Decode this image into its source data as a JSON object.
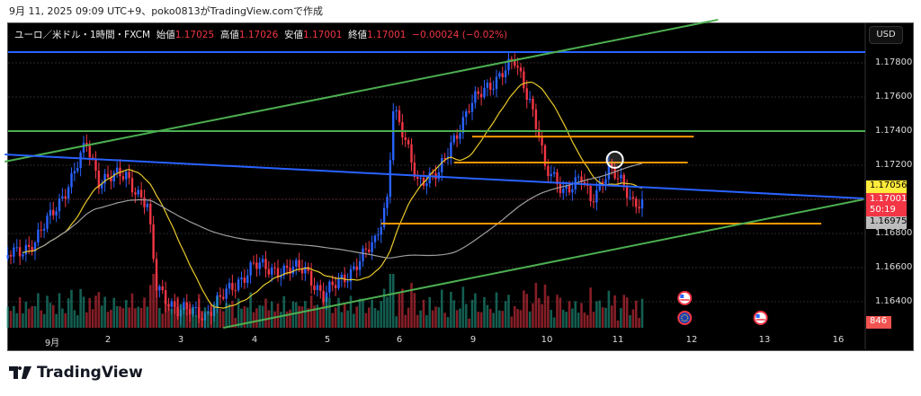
{
  "caption": "9月 11, 2025 09:09 UTC+9、poko0813がTradingView.comで作成",
  "legend": {
    "symbol": "ユーロ／米ドル・1時間・FXCM",
    "open_label": "始値",
    "open": "1.17025",
    "high_label": "高値",
    "high": "1.17026",
    "low_label": "安値",
    "low": "1.17001",
    "close_label": "終値",
    "close": "1.17001",
    "change": "−0.00024 (−0.02%)"
  },
  "currency_button": "USD",
  "price_axis": [
    "1.17800",
    "1.17600",
    "1.17400",
    "1.17200",
    "1.16800",
    "1.16600",
    "1.16400"
  ],
  "time_axis": [
    "9月",
    "2",
    "3",
    "4",
    "5",
    "6",
    "9",
    "10",
    "11",
    "12",
    "13",
    "16"
  ],
  "tags": {
    "ma_fast": "1.17056",
    "last": "1.17001",
    "countdown": "50:19",
    "ma_slow": "1.16975",
    "volume": "846"
  },
  "colors": {
    "up": "#2962ff",
    "down": "#f23645",
    "vol_up": "#22ab94",
    "vol_down": "#f23645",
    "ma_fast": "#e8c92a",
    "ma_slow": "#9e9e9e",
    "channel": "#4caf50",
    "level_blue": "#2962ff",
    "orange": "#ff9800"
  },
  "chart_data": {
    "type": "candlestick",
    "timeframe": "1h",
    "close_path": [
      [
        "08-31 15:00",
        1.16668
      ],
      [
        "09-01 00:00",
        1.16747
      ],
      [
        "09-01 12:00",
        1.17116
      ],
      [
        "09-01 17:00",
        1.17326
      ],
      [
        "09-01 21:00",
        1.17116
      ],
      [
        "09-02 06:00",
        1.17142
      ],
      [
        "09-02 13:00",
        1.16958
      ],
      [
        "09-02 16:00",
        1.16484
      ],
      [
        "09-02 23:00",
        1.16353
      ],
      [
        "09-03 08:00",
        1.16326
      ],
      [
        "09-03 17:00",
        1.16484
      ],
      [
        "09-04 00:00",
        1.16616
      ],
      [
        "09-04 05:00",
        1.16589
      ],
      [
        "09-04 17:00",
        1.16589
      ],
      [
        "09-04 23:00",
        1.16432
      ],
      [
        "09-05 07:00",
        1.16563
      ],
      [
        "09-05 16:00",
        1.16747
      ],
      [
        "09-05 20:00",
        1.17011
      ],
      [
        "09-05 22:00",
        1.17537
      ],
      [
        "09-06 01:00",
        1.17379
      ],
      [
        "09-06 06:00",
        1.17116
      ],
      [
        "09-06 13:00",
        1.17142
      ],
      [
        "09-06 17:00",
        1.17326
      ],
      [
        "09-06 23:00",
        1.17537
      ],
      [
        "09-09 04:00",
        1.17642
      ],
      [
        "09-09 10:00",
        1.17747
      ],
      [
        "09-09 14:00",
        1.178
      ],
      [
        "09-09 19:00",
        1.17589
      ],
      [
        "09-09 22:00",
        1.17379
      ],
      [
        "09-10 00:00",
        1.17168
      ],
      [
        "09-10 06:00",
        1.17063
      ],
      [
        "09-10 12:00",
        1.17116
      ],
      [
        "09-10 15:00",
        1.16984
      ],
      [
        "09-10 21:00",
        1.17195
      ],
      [
        "09-11 00:00",
        1.17116
      ],
      [
        "09-11 05:00",
        1.16984
      ],
      [
        "09-11 08:00",
        1.17001
      ]
    ],
    "horizontal_levels": [
      {
        "price": 1.17863,
        "color": "blue"
      },
      {
        "price": 1.174,
        "color": "green"
      }
    ],
    "orange_levels": [
      {
        "price": 1.17368,
        "from": "09-09 00:00",
        "to": "09-12 01:00"
      },
      {
        "price": 1.17216,
        "from": "09-06 18:00",
        "to": "09-11 23:00"
      },
      {
        "price": 1.16858,
        "from": "09-05 18:00",
        "to": "09-13 19:00"
      }
    ],
    "trendlines": [
      {
        "color": "green",
        "from": [
          "08-31 14:00",
          1.17221
        ],
        "to": [
          "09-12 09:00",
          1.18053
        ]
      },
      {
        "color": "green",
        "from": [
          "09-03 14:00",
          1.16247
        ],
        "to": [
          "09-16 09:00",
          1.17
        ]
      },
      {
        "color": "blue",
        "from": [
          "08-31 14:00",
          1.17263
        ],
        "to": [
          "09-16 09:00",
          1.17005
        ]
      }
    ],
    "marker_circle": [
      "09-10 23:00",
      1.17232
    ],
    "events": [
      {
        "flag": "us",
        "date": "09-11 22:00",
        "row": 1
      },
      {
        "flag": "eu",
        "date": "09-11 22:00",
        "row": 2
      },
      {
        "flag": "us",
        "date": "09-12 23:00",
        "row": 2
      }
    ]
  }
}
